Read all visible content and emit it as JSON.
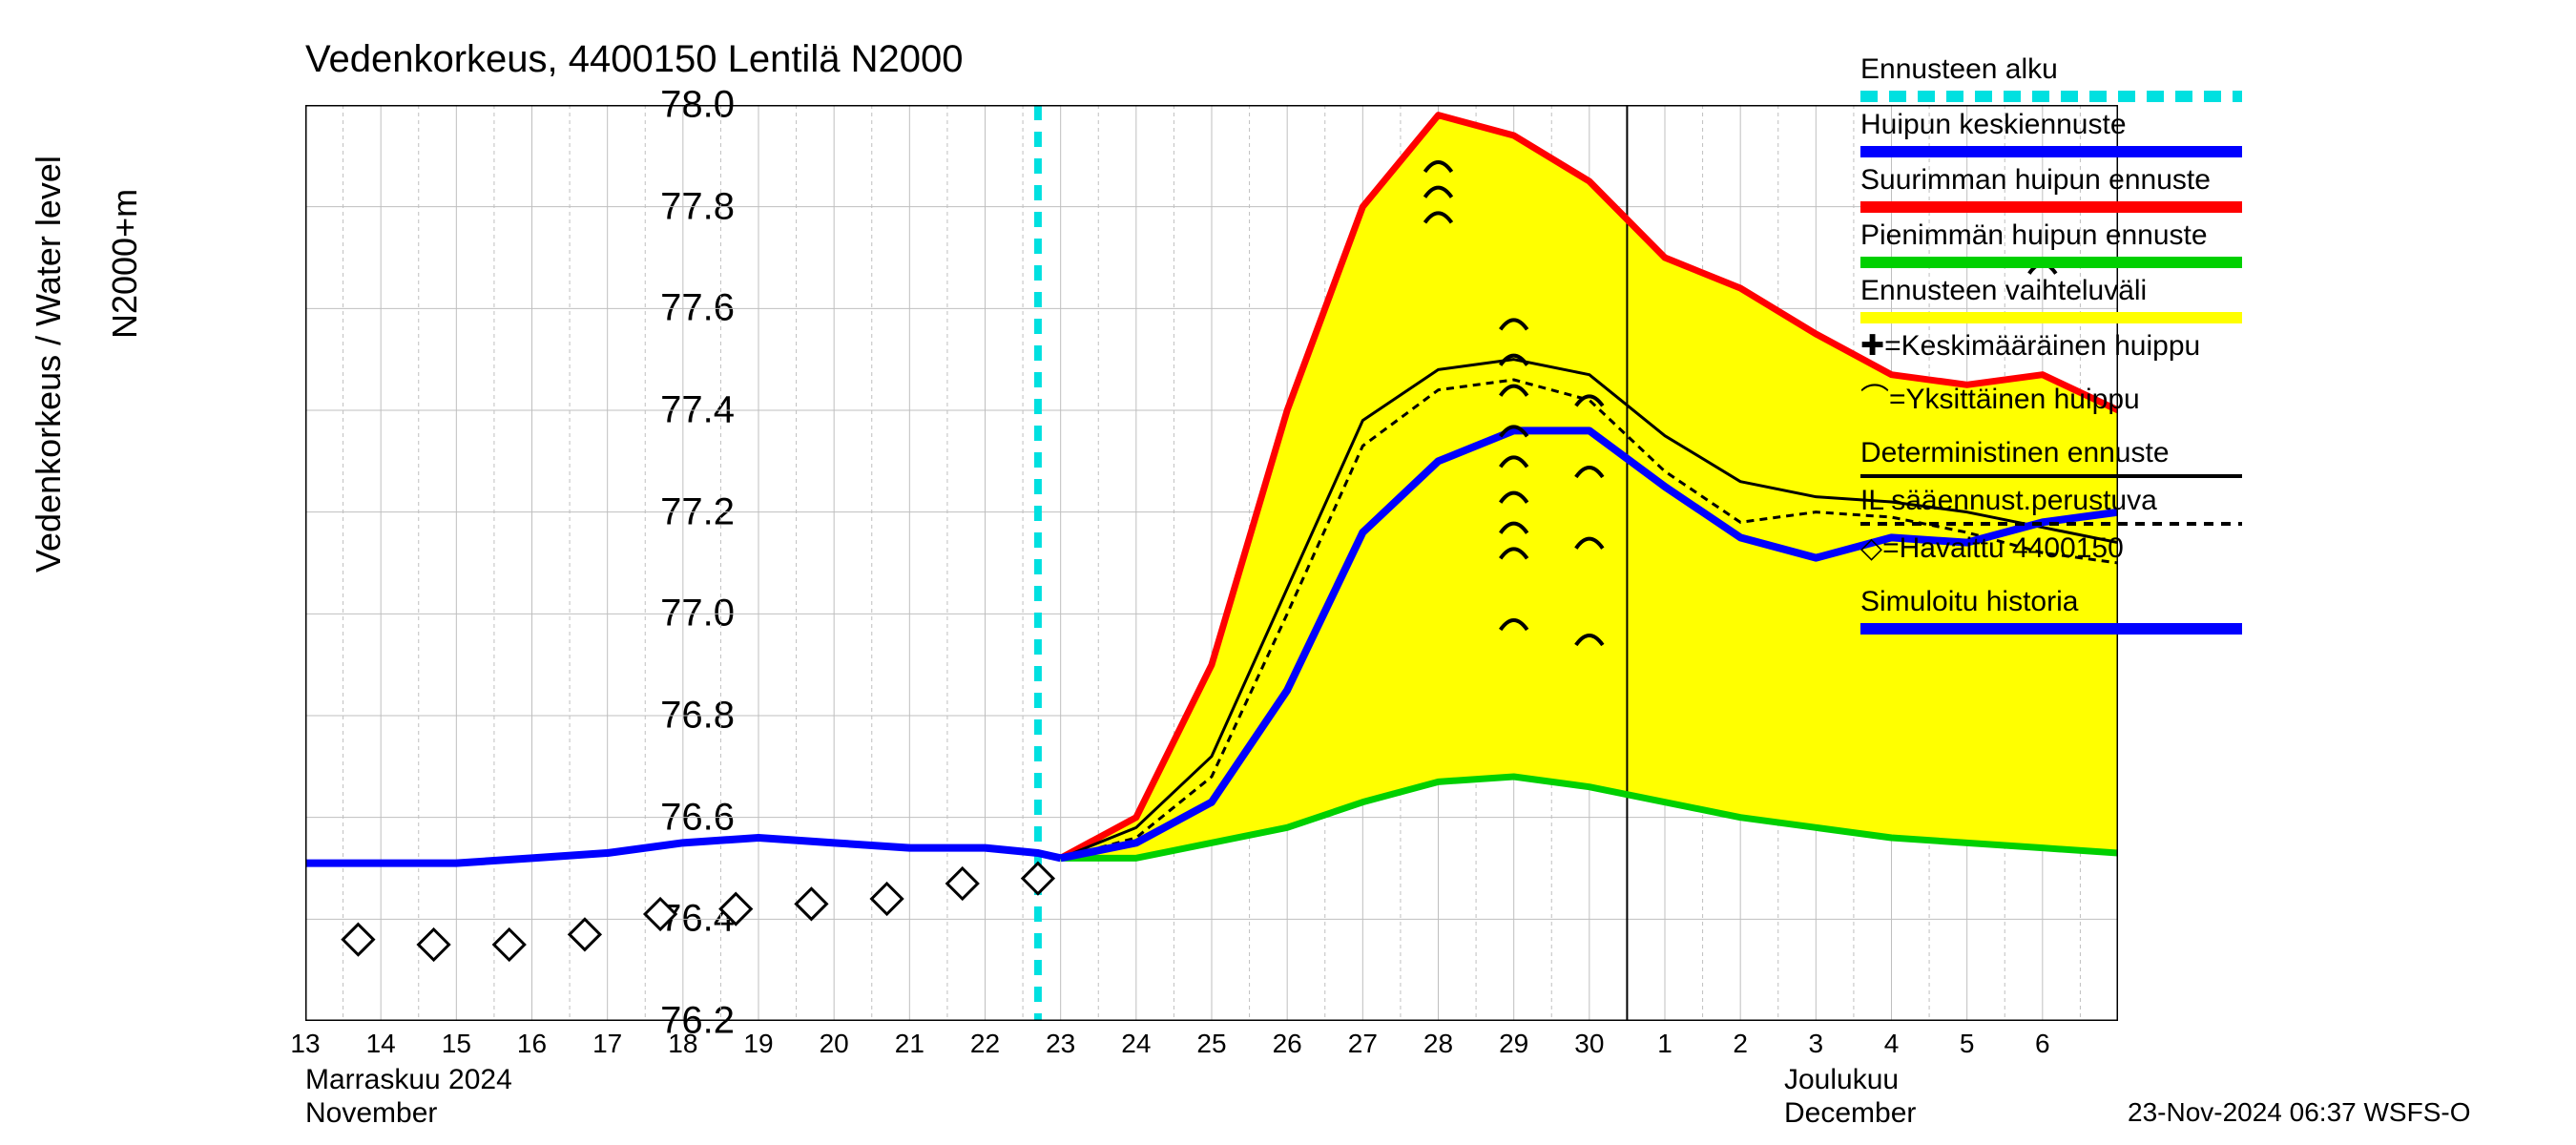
{
  "title": "Vedenkorkeus, 4400150 Lentilä N2000",
  "y_axis_label": "Vedenkorkeus / Water level",
  "y_axis_label2": "N2000+m",
  "footer": "23-Nov-2024 06:37 WSFS-O",
  "chart": {
    "type": "line",
    "xlim_days": [
      13,
      37
    ],
    "ylim": [
      76.2,
      78.0
    ],
    "ytick_step": 0.2,
    "yticks": [
      "76.2",
      "76.4",
      "76.6",
      "76.8",
      "77.0",
      "77.2",
      "77.4",
      "77.6",
      "77.8",
      "78.0"
    ],
    "xticks_days": [
      13,
      14,
      15,
      16,
      17,
      18,
      19,
      20,
      21,
      22,
      23,
      24,
      25,
      26,
      27,
      28,
      29,
      30,
      31,
      32,
      33,
      34,
      35,
      36
    ],
    "xtick_labels": [
      "13",
      "14",
      "15",
      "16",
      "17",
      "18",
      "19",
      "20",
      "21",
      "22",
      "23",
      "24",
      "25",
      "26",
      "27",
      "28",
      "29",
      "30",
      "1",
      "2",
      "3",
      "4",
      "5",
      "6"
    ],
    "month1_fi": "Marraskuu 2024",
    "month1_en": "November",
    "month2_fi": "Joulukuu",
    "month2_en": "December",
    "background_color": "#ffffff",
    "grid_color": "#bfbfbf",
    "forecast_start_day": 22.7,
    "forecast_start_color": "#00e0e0",
    "band_color": "#ffff00",
    "colors": {
      "blue": "#0000ff",
      "red": "#ff0000",
      "green": "#00d000",
      "black": "#000000",
      "cyan": "#00e0e0"
    },
    "series": {
      "sim_history": {
        "color": "#0000ff",
        "width": 8,
        "pts": [
          [
            13,
            76.51
          ],
          [
            14,
            76.51
          ],
          [
            15,
            76.51
          ],
          [
            16,
            76.52
          ],
          [
            17,
            76.53
          ],
          [
            18,
            76.55
          ],
          [
            19,
            76.56
          ],
          [
            20,
            76.55
          ],
          [
            21,
            76.54
          ],
          [
            22,
            76.54
          ],
          [
            22.7,
            76.53
          ],
          [
            23,
            76.52
          ]
        ]
      },
      "huipun_keski": {
        "color": "#0000ff",
        "width": 8,
        "pts": [
          [
            23,
            76.52
          ],
          [
            24,
            76.55
          ],
          [
            25,
            76.63
          ],
          [
            26,
            76.85
          ],
          [
            27,
            77.16
          ],
          [
            28,
            77.3
          ],
          [
            29,
            77.36
          ],
          [
            30,
            77.36
          ],
          [
            31,
            77.25
          ],
          [
            32,
            77.15
          ],
          [
            33,
            77.11
          ],
          [
            34,
            77.15
          ],
          [
            35,
            77.14
          ],
          [
            36,
            77.18
          ],
          [
            37,
            77.2
          ]
        ]
      },
      "max_peak": {
        "color": "#ff0000",
        "width": 7,
        "pts": [
          [
            23,
            76.52
          ],
          [
            24,
            76.6
          ],
          [
            25,
            76.9
          ],
          [
            26,
            77.4
          ],
          [
            27,
            77.8
          ],
          [
            28,
            77.98
          ],
          [
            29,
            77.94
          ],
          [
            30,
            77.85
          ],
          [
            31,
            77.7
          ],
          [
            32,
            77.64
          ],
          [
            33,
            77.55
          ],
          [
            34,
            77.47
          ],
          [
            35,
            77.45
          ],
          [
            36,
            77.47
          ],
          [
            37,
            77.4
          ]
        ]
      },
      "min_peak": {
        "color": "#00d000",
        "width": 7,
        "pts": [
          [
            23,
            76.52
          ],
          [
            24,
            76.52
          ],
          [
            25,
            76.55
          ],
          [
            26,
            76.58
          ],
          [
            27,
            76.63
          ],
          [
            28,
            76.67
          ],
          [
            29,
            76.68
          ],
          [
            30,
            76.66
          ],
          [
            31,
            76.63
          ],
          [
            32,
            76.6
          ],
          [
            33,
            76.58
          ],
          [
            34,
            76.56
          ],
          [
            35,
            76.55
          ],
          [
            36,
            76.54
          ],
          [
            37,
            76.53
          ]
        ]
      },
      "deterministic": {
        "color": "#000000",
        "width": 3,
        "pts": [
          [
            23,
            76.52
          ],
          [
            24,
            76.58
          ],
          [
            25,
            76.72
          ],
          [
            26,
            77.05
          ],
          [
            27,
            77.38
          ],
          [
            28,
            77.48
          ],
          [
            29,
            77.5
          ],
          [
            30,
            77.47
          ],
          [
            31,
            77.35
          ],
          [
            32,
            77.26
          ],
          [
            33,
            77.23
          ],
          [
            34,
            77.22
          ],
          [
            35,
            77.2
          ],
          [
            36,
            77.17
          ],
          [
            37,
            77.14
          ]
        ]
      },
      "il_forecast": {
        "color": "#000000",
        "width": 3,
        "dash": "8,6",
        "pts": [
          [
            23,
            76.52
          ],
          [
            24,
            76.56
          ],
          [
            25,
            76.68
          ],
          [
            26,
            77.0
          ],
          [
            27,
            77.33
          ],
          [
            28,
            77.44
          ],
          [
            29,
            77.46
          ],
          [
            30,
            77.42
          ],
          [
            31,
            77.28
          ],
          [
            32,
            77.18
          ],
          [
            33,
            77.2
          ],
          [
            34,
            77.19
          ],
          [
            35,
            77.16
          ],
          [
            36,
            77.12
          ],
          [
            37,
            77.1
          ]
        ]
      }
    },
    "observed": {
      "marker": "diamond",
      "color": "#000000",
      "fill": "#ffffff",
      "size": 16,
      "pts": [
        [
          12.7,
          76.35
        ],
        [
          13.7,
          76.36
        ],
        [
          14.7,
          76.35
        ],
        [
          15.7,
          76.35
        ],
        [
          16.7,
          76.37
        ],
        [
          17.7,
          76.41
        ],
        [
          18.7,
          76.42
        ],
        [
          19.7,
          76.43
        ],
        [
          20.7,
          76.44
        ],
        [
          21.7,
          76.47
        ],
        [
          22.7,
          76.48
        ]
      ]
    },
    "peaks": {
      "marker": "cap",
      "color": "#000000",
      "pts": [
        [
          28,
          77.88
        ],
        [
          28,
          77.83
        ],
        [
          28,
          77.78
        ],
        [
          29,
          77.57
        ],
        [
          29,
          77.5
        ],
        [
          29,
          77.44
        ],
        [
          29,
          77.36
        ],
        [
          29,
          77.3
        ],
        [
          29,
          77.23
        ],
        [
          29,
          77.17
        ],
        [
          29,
          77.12
        ],
        [
          29,
          76.98
        ],
        [
          30,
          77.42
        ],
        [
          30,
          77.28
        ],
        [
          30,
          77.14
        ],
        [
          30,
          76.95
        ],
        [
          36,
          77.68
        ]
      ]
    }
  },
  "legend": [
    {
      "label": "Ennusteen alku",
      "type": "dashbar",
      "color": "#00e0e0"
    },
    {
      "label": "Huipun keskiennuste",
      "type": "bar",
      "color": "#0000ff"
    },
    {
      "label": "Suurimman huipun ennuste",
      "type": "bar",
      "color": "#ff0000"
    },
    {
      "label": "Pienimmän huipun ennuste",
      "type": "bar",
      "color": "#00d000"
    },
    {
      "label": "Ennusteen vaihteluväli",
      "type": "bar",
      "color": "#ffff00"
    },
    {
      "label": "✚=Keskimääräinen huippu",
      "type": "text"
    },
    {
      "label": "⌒=Yksittäinen huippu",
      "type": "text"
    },
    {
      "label": "Deterministinen ennuste",
      "type": "thinbar",
      "color": "#000000"
    },
    {
      "label": "IL sääennust.perustuva",
      "type": "dashthin",
      "color": "#000000"
    },
    {
      "label": "◇=Havaittu 4400150",
      "type": "text"
    },
    {
      "label": "Simuloitu historia",
      "type": "bar",
      "color": "#0000ff"
    }
  ]
}
